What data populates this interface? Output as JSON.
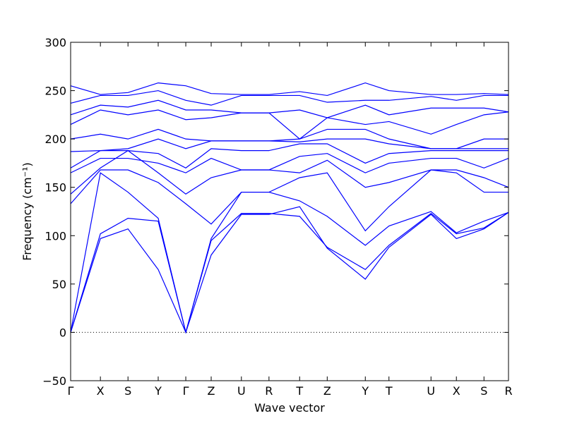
{
  "chart_data": {
    "type": "line",
    "xlabel": "Wave vector",
    "ylabel": "Frequency (cm⁻¹)",
    "x": [
      0,
      0.068,
      0.131,
      0.2,
      0.263,
      0.321,
      0.39,
      0.453,
      0.523,
      0.586,
      0.673,
      0.727,
      0.823,
      0.881,
      0.944,
      1.0
    ],
    "xlim": [
      0,
      1.0
    ],
    "xticks": [
      {
        "value": 0,
        "label": "Γ"
      },
      {
        "value": 0.068,
        "label": "X"
      },
      {
        "value": 0.131,
        "label": "S"
      },
      {
        "value": 0.2,
        "label": "Y"
      },
      {
        "value": 0.263,
        "label": "Γ"
      },
      {
        "value": 0.321,
        "label": "Z"
      },
      {
        "value": 0.39,
        "label": "U"
      },
      {
        "value": 0.453,
        "label": "R"
      },
      {
        "value": 0.523,
        "label": "T"
      },
      {
        "value": 0.586,
        "label": "Z"
      },
      {
        "value": 0.673,
        "label": "Y"
      },
      {
        "value": 0.727,
        "label": "T"
      },
      {
        "value": 0.823,
        "label": "U"
      },
      {
        "value": 0.881,
        "label": "X"
      },
      {
        "value": 0.944,
        "label": "S"
      },
      {
        "value": 1.0,
        "label": "R"
      }
    ],
    "ylim": [
      -50,
      300
    ],
    "yticks": [
      {
        "value": -50,
        "label": "−50"
      },
      0,
      50,
      100,
      150,
      200,
      250,
      300
    ],
    "zero_line": true,
    "series": [
      {
        "color": "#0000ff",
        "values": [
          0,
          97,
          107,
          65,
          0,
          80,
          122,
          122,
          130,
          87,
          55,
          88,
          122,
          97,
          107,
          124
        ]
      },
      {
        "color": "#0000ff",
        "values": [
          0,
          102,
          118,
          115,
          0,
          95,
          123,
          123,
          120,
          88,
          65,
          90,
          123,
          102,
          108,
          124
        ]
      },
      {
        "color": "#0000ff",
        "values": [
          0,
          165,
          145,
          118,
          0,
          97,
          145,
          145,
          136,
          120,
          90,
          110,
          125,
          103,
          115,
          124
        ]
      },
      {
        "color": "#0000ff",
        "values": [
          133,
          168,
          168,
          155,
          133,
          112,
          145,
          145,
          160,
          165,
          105,
          130,
          168,
          165,
          145,
          145
        ]
      },
      {
        "color": "#0000ff",
        "values": [
          143,
          170,
          188,
          165,
          143,
          160,
          168,
          168,
          165,
          178,
          150,
          155,
          168,
          168,
          160,
          150
        ]
      },
      {
        "color": "#0000ff",
        "values": [
          165,
          180,
          180,
          175,
          165,
          180,
          168,
          168,
          182,
          185,
          165,
          175,
          180,
          180,
          170,
          180
        ]
      },
      {
        "color": "#0000ff",
        "values": [
          170,
          188,
          188,
          185,
          170,
          190,
          188,
          188,
          195,
          195,
          175,
          185,
          188,
          188,
          188,
          188
        ]
      },
      {
        "color": "#0000ff",
        "values": [
          187,
          188,
          190,
          200,
          190,
          198,
          198,
          198,
          197,
          200,
          200,
          195,
          190,
          190,
          190,
          190
        ]
      },
      {
        "color": "#0000ff",
        "values": [
          200,
          205,
          200,
          210,
          200,
          198,
          198,
          198,
          200,
          210,
          210,
          200,
          190,
          190,
          200,
          200
        ]
      },
      {
        "color": "#0000ff",
        "values": [
          215,
          230,
          225,
          230,
          220,
          222,
          227,
          227,
          200,
          222,
          215,
          218,
          205,
          215,
          225,
          228
        ]
      },
      {
        "color": "#0000ff",
        "values": [
          225,
          235,
          233,
          240,
          230,
          230,
          227,
          227,
          230,
          222,
          235,
          225,
          232,
          232,
          232,
          228
        ]
      },
      {
        "color": "#0000ff",
        "values": [
          237,
          245,
          245,
          250,
          240,
          235,
          245,
          245,
          245,
          238,
          240,
          240,
          244,
          240,
          245,
          245
        ]
      },
      {
        "color": "#0000ff",
        "values": [
          255,
          246,
          248,
          258,
          255,
          247,
          246,
          246,
          249,
          245,
          258,
          250,
          246,
          246,
          247,
          246
        ]
      }
    ]
  }
}
